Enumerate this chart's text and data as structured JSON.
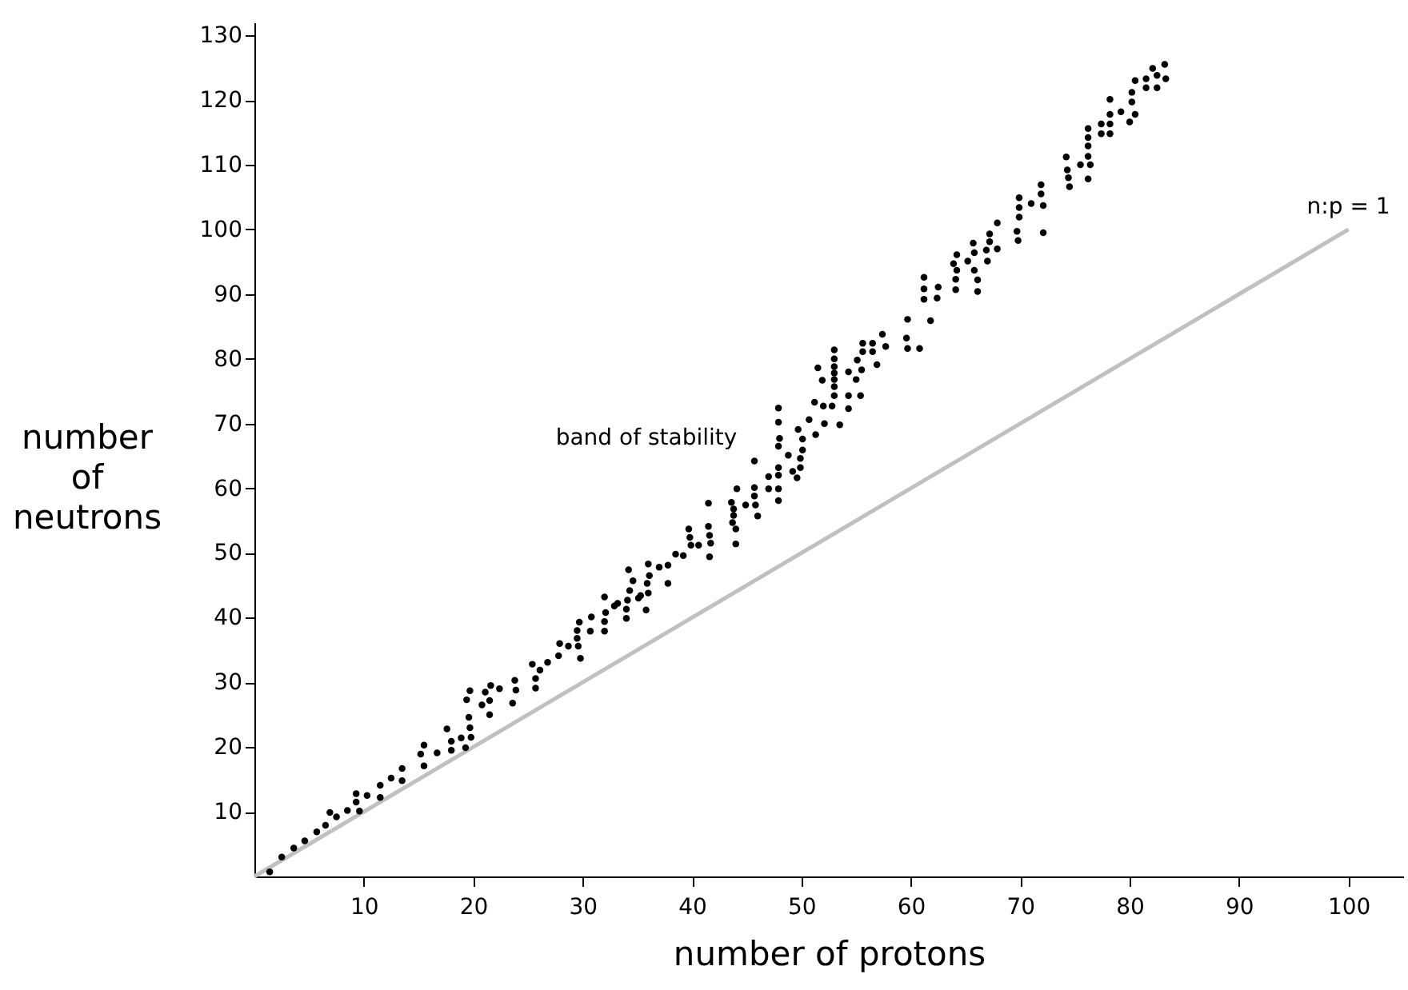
{
  "chart_data": {
    "type": "scatter",
    "xlabel": "number of protons",
    "ylabel": "number of neutrons",
    "xlim": [
      0,
      105
    ],
    "ylim": [
      0,
      132
    ],
    "xticks": [
      10,
      20,
      30,
      40,
      50,
      60,
      70,
      80,
      90,
      100
    ],
    "yticks": [
      10,
      20,
      30,
      40,
      50,
      60,
      70,
      80,
      90,
      100,
      110,
      120,
      130
    ],
    "grid": false,
    "annotations": [
      "band of stability"
    ],
    "series": [
      {
        "type": "line",
        "name": "n:p = 1",
        "color": "#c0c0c0",
        "x": [
          0,
          100
        ],
        "values": [
          0,
          100
        ]
      },
      {
        "type": "scatter",
        "color": "#000000",
        "marker": "circle",
        "x": [
          1.4,
          2.5,
          3.6,
          4.6,
          5.7,
          6.5,
          6.9,
          7.5,
          8.5,
          9.3,
          9.3,
          9.6,
          10.3,
          11.5,
          11.5,
          12.5,
          13.5,
          13.5,
          15.2,
          15.5,
          15.5,
          16.7,
          17.6,
          18.0,
          18.0,
          18.9,
          19.4,
          19.7,
          19.6,
          19.7,
          19.8,
          19.3,
          20.8,
          21.1,
          21.5,
          21.5,
          21.6,
          22.4,
          23.6,
          23.8,
          23.9,
          25.4,
          25.7,
          25.7,
          26.1,
          26.8,
          27.8,
          27.9,
          28.7,
          29.6,
          29.8,
          29.5,
          29.5,
          29.7,
          30.8,
          30.7,
          32.0,
          32.0,
          32.1,
          32.0,
          32.9,
          33.2,
          34.0,
          34.0,
          34.1,
          34.2,
          34.3,
          34.6,
          35.1,
          35.3,
          35.8,
          36.0,
          36.0,
          36.1,
          35.9,
          37.0,
          37.8,
          37.8,
          38.5,
          39.2,
          39.7,
          39.8,
          39.9,
          40.6,
          41.6,
          41.7,
          41.6,
          44.0,
          44.0,
          41.5,
          41.5,
          43.6,
          43.8,
          43.8,
          43.7,
          44.1,
          44.9,
          45.7,
          45.7,
          45.8,
          46.0,
          45.7,
          47.0,
          47.0,
          47.9,
          47.9,
          47.9,
          47.9,
          47.9,
          47.9,
          47.9,
          48.0,
          48.8,
          49.2,
          49.6,
          49.9,
          49.9,
          50.1,
          50.1,
          49.7,
          50.7,
          51.3,
          51.2,
          52.0,
          52.1,
          52.8,
          53.0,
          53.0,
          53.0,
          53.0,
          53.0,
          53.0,
          53.0,
          51.5,
          51.9,
          53.5,
          54.3,
          54.3,
          54.3,
          55.0,
          55.4,
          55.1,
          55.5,
          55.6,
          55.6,
          56.5,
          56.5,
          56.9,
          57.4,
          57.7,
          59.6,
          59.7,
          60.8,
          59.7,
          61.8,
          61.2,
          61.2,
          61.2,
          62.5,
          62.4,
          63.9,
          64.2,
          64.2,
          64.1,
          64.1,
          65.2,
          65.7,
          65.8,
          65.8,
          66.1,
          66.1,
          66.9,
          67.0,
          67.2,
          67.2,
          67.9,
          67.9,
          69.7,
          69.8,
          69.9,
          69.9,
          69.9,
          71.0,
          71.9,
          71.9,
          72.1,
          72.1,
          74.2,
          74.3,
          74.4,
          74.5,
          75.5,
          76.2,
          76.2,
          76.2,
          76.2,
          76.4,
          76.2,
          77.4,
          77.4,
          78.2,
          78.2,
          78.2,
          78.2,
          79.2,
          80.0,
          80.2,
          80.2,
          80.5,
          80.5,
          81.5,
          81.5,
          82.1,
          82.5,
          82.5,
          83.2,
          83.3
        ],
        "values": [
          0.7,
          3.0,
          4.4,
          5.5,
          6.9,
          7.9,
          9.9,
          9.2,
          10.2,
          12.8,
          11.5,
          10.1,
          12.5,
          12.2,
          14.1,
          15.2,
          16.7,
          14.8,
          18.9,
          20.3,
          17.1,
          19.1,
          22.8,
          20.9,
          19.5,
          21.4,
          27.3,
          28.7,
          24.6,
          23.0,
          21.5,
          19.9,
          26.5,
          28.5,
          27.2,
          25.0,
          29.5,
          29.0,
          26.8,
          30.3,
          28.8,
          32.8,
          30.6,
          29.1,
          31.9,
          33.1,
          34.1,
          36.0,
          35.6,
          35.6,
          33.7,
          36.8,
          38.0,
          39.3,
          40.1,
          37.9,
          37.9,
          39.4,
          40.8,
          43.2,
          41.8,
          42.2,
          39.9,
          41.3,
          42.7,
          47.4,
          44.2,
          45.7,
          43.0,
          43.4,
          41.2,
          43.8,
          48.3,
          46.5,
          45.3,
          47.8,
          48.1,
          45.3,
          49.8,
          49.6,
          53.7,
          52.4,
          51.2,
          51.2,
          52.7,
          51.5,
          49.4,
          51.4,
          53.7,
          57.7,
          54.1,
          57.8,
          56.8,
          55.8,
          54.7,
          59.9,
          57.4,
          60.1,
          58.8,
          57.4,
          55.7,
          64.2,
          61.8,
          59.9,
          59.9,
          58.1,
          62.0,
          63.2,
          66.5,
          70.2,
          72.4,
          67.7,
          65.1,
          62.6,
          61.6,
          63.2,
          64.6,
          65.9,
          67.6,
          69.1,
          70.6,
          68.3,
          73.3,
          72.7,
          70.0,
          72.7,
          74.3,
          75.7,
          76.8,
          77.8,
          78.8,
          80.0,
          81.4,
          78.6,
          76.7,
          69.8,
          74.3,
          72.3,
          78.0,
          76.8,
          74.3,
          79.8,
          78.3,
          81.1,
          82.4,
          82.4,
          81.1,
          79.1,
          83.8,
          81.9,
          83.2,
          81.6,
          81.6,
          86.1,
          85.9,
          92.6,
          90.8,
          89.2,
          91.1,
          89.4,
          94.7,
          96.1,
          93.7,
          92.3,
          90.7,
          95.1,
          97.9,
          96.4,
          93.7,
          92.2,
          90.4,
          96.8,
          95.1,
          99.3,
          98.1,
          101.0,
          97.0,
          99.7,
          98.3,
          101.9,
          103.4,
          104.9,
          104.0,
          106.9,
          105.5,
          103.7,
          99.5,
          111.2,
          109.2,
          108.0,
          106.6,
          110.0,
          115.6,
          114.2,
          112.9,
          111.3,
          110.0,
          107.8,
          116.3,
          114.8,
          120.1,
          117.8,
          116.3,
          114.8,
          118.2,
          116.6,
          121.2,
          119.7,
          117.8,
          123.0,
          123.3,
          121.9,
          124.9,
          123.8,
          121.9,
          125.5,
          123.3
        ]
      }
    ]
  }
}
